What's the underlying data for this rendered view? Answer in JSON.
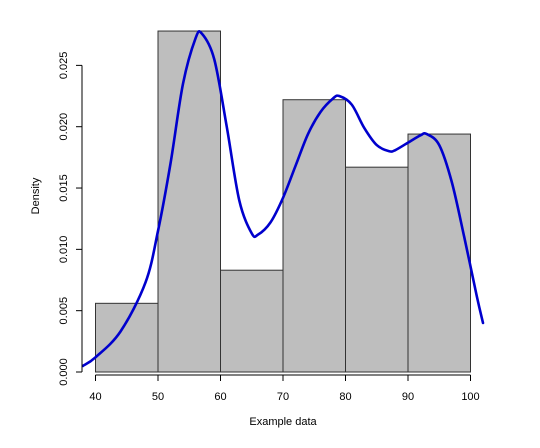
{
  "chart_data": {
    "type": "bar",
    "subtype": "histogram-with-density-curve",
    "xlabel": "Example data",
    "ylabel": "Density",
    "bins": [
      {
        "from": 40,
        "to": 50,
        "density": 0.0056
      },
      {
        "from": 50,
        "to": 60,
        "density": 0.0278
      },
      {
        "from": 60,
        "to": 70,
        "density": 0.0083
      },
      {
        "from": 70,
        "to": 80,
        "density": 0.0222
      },
      {
        "from": 80,
        "to": 90,
        "density": 0.0167
      },
      {
        "from": 90,
        "to": 100,
        "density": 0.0194
      }
    ],
    "density_curve": {
      "x": [
        38,
        40,
        44,
        48,
        50,
        52,
        54,
        56,
        57,
        59,
        61,
        63,
        65,
        66,
        68,
        70,
        72,
        74,
        76,
        78,
        79,
        81,
        83,
        85,
        87,
        88,
        90,
        92,
        93,
        95,
        97,
        99,
        101,
        102
      ],
      "y": [
        0.0005,
        0.0012,
        0.0033,
        0.0073,
        0.0115,
        0.017,
        0.0235,
        0.0272,
        0.0276,
        0.0255,
        0.02,
        0.014,
        0.0113,
        0.0112,
        0.0122,
        0.0142,
        0.0168,
        0.0194,
        0.0212,
        0.0223,
        0.0225,
        0.0218,
        0.0199,
        0.0185,
        0.018,
        0.0181,
        0.0187,
        0.0193,
        0.0194,
        0.0185,
        0.0155,
        0.011,
        0.0062,
        0.004
      ]
    },
    "x_ticks": [
      "40",
      "50",
      "60",
      "70",
      "80",
      "90",
      "100"
    ],
    "y_ticks": [
      "0.000",
      "0.005",
      "0.010",
      "0.015",
      "0.020",
      "0.025"
    ],
    "xlim": [
      38,
      102
    ],
    "ylim": [
      0,
      0.0287
    ],
    "grid": false,
    "colors": {
      "bar_fill": "#bebebe",
      "bar_stroke": "#333333",
      "curve": "#0000cd",
      "axis": "#000000"
    }
  }
}
